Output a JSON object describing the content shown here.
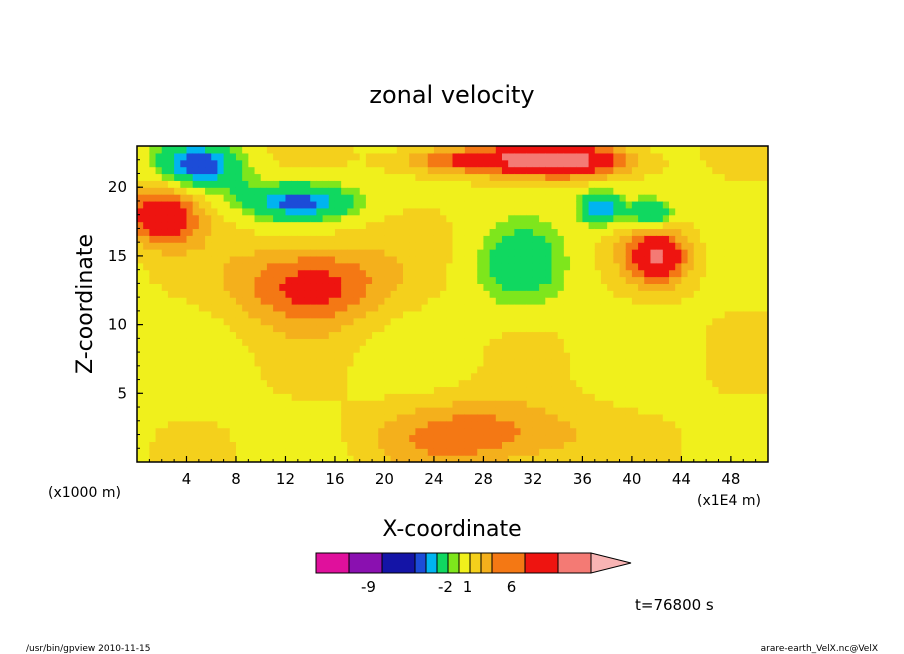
{
  "chart_data": {
    "type": "heatmap",
    "title": "zonal velocity",
    "xlabel": "X-coordinate",
    "ylabel": "Z-coordinate",
    "x_unit_left": "(x1000 m)",
    "x_unit_right": "(x1E4 m)",
    "x_ticks": [
      "4",
      "8",
      "12",
      "16",
      "20",
      "24",
      "28",
      "32",
      "36",
      "40",
      "44",
      "48"
    ],
    "y_ticks": [
      "5",
      "10",
      "15",
      "20"
    ],
    "xlim": [
      0,
      51
    ],
    "ylim": [
      0,
      23
    ],
    "grid": false,
    "colorbar": {
      "colors": [
        "#e0109c",
        "#8a10b0",
        "#1414a6",
        "#1c4cd8",
        "#00b4f0",
        "#10d860",
        "#7ee61c",
        "#f0f01c",
        "#f4d01c",
        "#f4b01c",
        "#f47814",
        "#ee1410",
        "#f47a74",
        "#f8b4b4"
      ],
      "tick_labels": [
        "-9",
        "-2",
        "1",
        "6"
      ],
      "tick_index": [
        1.5,
        5.5,
        7.5,
        10.5
      ]
    },
    "blobs": [
      {
        "x": 5,
        "z": 21.5,
        "v": -3,
        "rx": 3.5,
        "rz": 1.8
      },
      {
        "x": 13,
        "z": 19,
        "v": -3,
        "rx": 5,
        "rz": 1.5
      },
      {
        "x": 27,
        "z": 22,
        "v": -2.5,
        "rx": 3.5,
        "rz": 1
      },
      {
        "x": 37.5,
        "z": 18.5,
        "v": -3,
        "rx": 1.8,
        "rz": 1.3
      },
      {
        "x": 41.5,
        "z": 18,
        "v": -3,
        "rx": 2,
        "rz": 1.2
      },
      {
        "x": 31,
        "z": 14,
        "v": -1.5,
        "rx": 4,
        "rz": 3.5
      },
      {
        "x": 27,
        "z": 22,
        "v": 6,
        "rx": 5,
        "rz": 1
      },
      {
        "x": 35,
        "z": 22,
        "v": 6,
        "rx": 5,
        "rz": 1.2
      },
      {
        "x": 42,
        "z": 15,
        "v": 5,
        "rx": 2.5,
        "rz": 2
      },
      {
        "x": 2,
        "z": 18,
        "v": 5,
        "rx": 3,
        "rz": 2
      },
      {
        "x": 14,
        "z": 13,
        "v": 4,
        "rx": 6,
        "rz": 3
      },
      {
        "x": 28,
        "z": 2,
        "v": 3,
        "rx": 8,
        "rz": 2.5
      }
    ]
  },
  "annotations": {
    "time": "t=76800 s",
    "footer_left": "/usr/bin/gpview   2010-11-15",
    "footer_right": "arare-earth_VelX.nc@VelX"
  }
}
